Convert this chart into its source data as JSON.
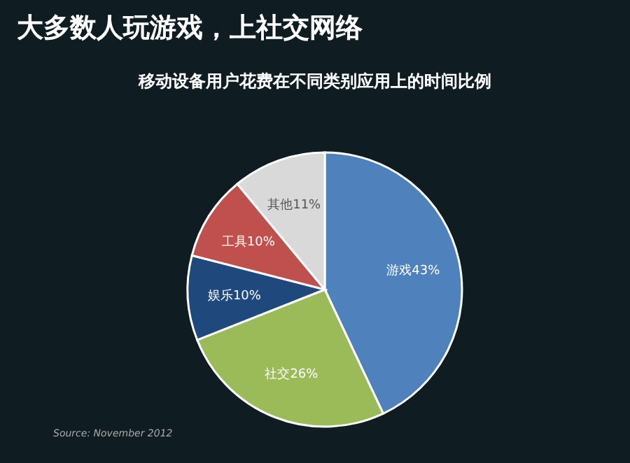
{
  "chart_data": {
    "type": "pie",
    "title": "大多数人玩游戏，上社交网络",
    "subtitle": "移动设备用户花费在不同类别应用上的时间比例",
    "categories": [
      "游戏",
      "社交",
      "娱乐",
      "工具",
      "其他"
    ],
    "values": [
      43,
      26,
      10,
      10,
      11
    ],
    "colors": [
      "#4f81bd",
      "#9bbb59",
      "#1f497d",
      "#c0504d",
      "#d9d9d9"
    ],
    "value_labels": [
      "43%",
      "26%",
      "10%",
      "10%",
      "11%"
    ],
    "annotations": [
      "Source: November 2012"
    ]
  }
}
